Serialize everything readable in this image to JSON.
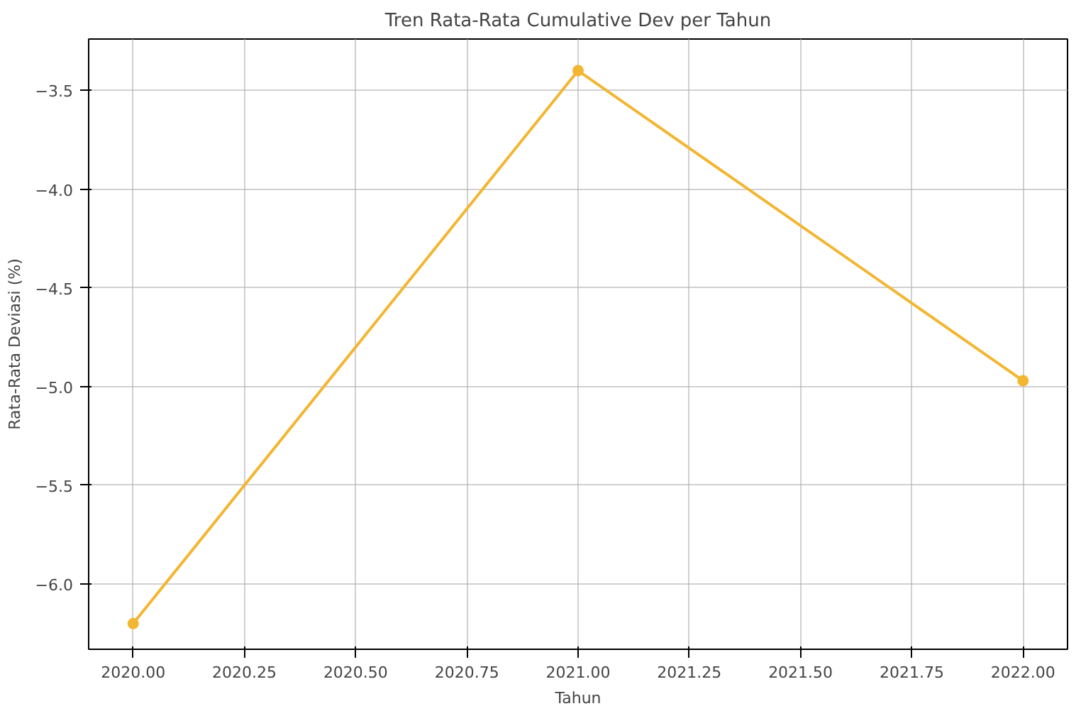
{
  "chart_data": {
    "type": "line",
    "title": "Tren Rata-Rata Cumulative Dev per Tahun",
    "xlabel": "Tahun",
    "ylabel": "Rata-Rata Deviasi (%)",
    "x": [
      2020,
      2021,
      2022
    ],
    "series": [
      {
        "color": "#f2b632",
        "values": [
          -6.2,
          -3.4,
          -4.97
        ]
      }
    ],
    "xlim": [
      2019.9,
      2022.1
    ],
    "ylim": [
      -6.33,
      -3.24
    ],
    "xticks": [
      {
        "value": 2020,
        "label": "2020.00"
      },
      {
        "value": 2020.25,
        "label": "2020.25"
      },
      {
        "value": 2020.5,
        "label": "2020.50"
      },
      {
        "value": 2020.75,
        "label": "2020.75"
      },
      {
        "value": 2021,
        "label": "2021.00"
      },
      {
        "value": 2021.25,
        "label": "2021.25"
      },
      {
        "value": 2021.5,
        "label": "2021.50"
      },
      {
        "value": 2021.75,
        "label": "2021.75"
      },
      {
        "value": 2022,
        "label": "2022.00"
      }
    ],
    "yticks": [
      {
        "value": -6.0,
        "label": "−6.0"
      },
      {
        "value": -5.5,
        "label": "−5.5"
      },
      {
        "value": -5.0,
        "label": "−5.0"
      },
      {
        "value": -4.5,
        "label": "−4.5"
      },
      {
        "value": -4.0,
        "label": "−4.0"
      },
      {
        "value": -3.5,
        "label": "−3.5"
      }
    ],
    "grid": true,
    "marker": "circle",
    "line_style": "solid"
  }
}
